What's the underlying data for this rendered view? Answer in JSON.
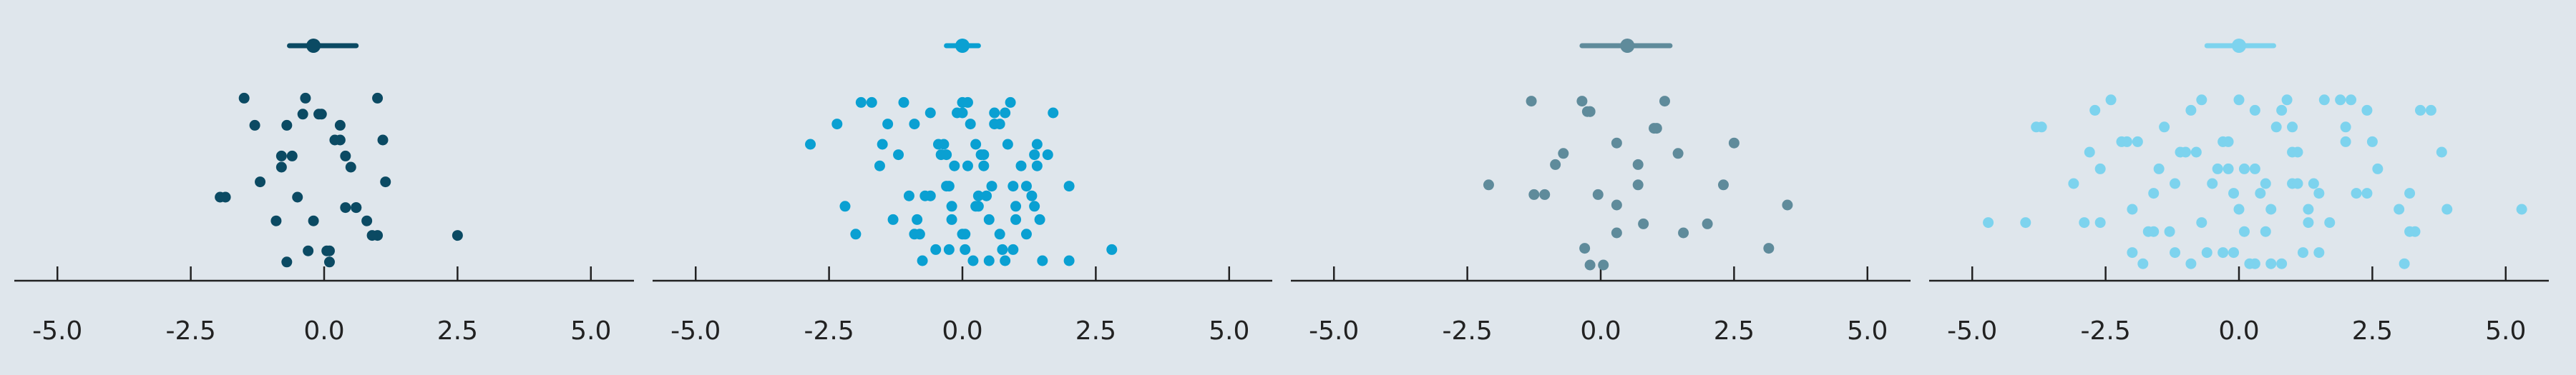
{
  "chart_data": [
    {
      "type": "scatter",
      "style": "jittered strip plot with mean and interval summary above",
      "color": "#0b4a63",
      "x_ticks": [
        "-5.0",
        "-2.5",
        "0.0",
        "2.5",
        "5.0"
      ],
      "xlim": [
        -5.5,
        5.5
      ],
      "summary": {
        "center": -0.2,
        "low": -0.65,
        "high": 0.6
      },
      "values": [
        -1.5,
        -0.5,
        -0.4,
        0.4,
        0.3,
        0.8,
        1.1,
        2.5,
        -0.8,
        0.05,
        0.5,
        -0.7,
        1.15,
        -0.35,
        -1.95,
        -0.05,
        0.6,
        -1.3,
        -0.9,
        0.3,
        1.0,
        -0.6,
        -0.3,
        -0.8,
        0.1,
        -1.2,
        1.0,
        -1.85,
        -0.1,
        0.6,
        -0.7,
        -0.2,
        0.2,
        0.9,
        0.4,
        0.1
      ]
    },
    {
      "type": "scatter",
      "style": "jittered strip plot with mean and interval summary above",
      "color": "#0aa0d2",
      "x_ticks": [
        "-5.0",
        "-2.5",
        "0.0",
        "2.5",
        "5.0"
      ],
      "xlim": [
        -5.5,
        5.5
      ],
      "summary": {
        "center": 0.0,
        "low": -0.3,
        "high": 0.3
      },
      "values": [
        -2.85,
        -0.9,
        -0.4,
        -0.25,
        0.1,
        0.5,
        0.95,
        -1.1,
        -0.6,
        0.0,
        0.3,
        0.7,
        1.45,
        -1.5,
        -0.8,
        -0.3,
        0.05,
        0.4,
        0.8,
        1.2,
        -1.7,
        -0.7,
        -0.1,
        0.25,
        0.6,
        1.0,
        1.4,
        -2.0,
        -1.2,
        -0.5,
        -0.15,
        0.2,
        0.55,
        0.9,
        1.3,
        1.7,
        -2.2,
        -1.4,
        -0.85,
        -0.35,
        0.0,
        0.35,
        0.75,
        1.1,
        1.5,
        2.0,
        -1.9,
        -1.0,
        -0.6,
        -0.2,
        0.15,
        0.5,
        0.85,
        1.2,
        1.6,
        2.8,
        -1.55,
        -0.75,
        -0.25,
        0.1,
        0.45,
        0.8,
        1.35,
        -2.35,
        -1.3,
        -0.45,
        0.05,
        0.4,
        0.95,
        1.4,
        2.0,
        -0.3,
        0.0,
        0.3,
        0.6,
        1.0,
        -0.9,
        -0.2,
        0.25,
        0.7,
        1.35
      ]
    },
    {
      "type": "scatter",
      "style": "jittered strip plot with mean and interval summary above",
      "color": "#5f8b9b",
      "x_ticks": [
        "-5.0",
        "-2.5",
        "0.0",
        "2.5",
        "5.0"
      ],
      "xlim": [
        -5.5,
        5.5
      ],
      "summary": {
        "center": 0.5,
        "low": -0.35,
        "high": 1.3
      },
      "values": [
        -2.1,
        -1.3,
        -1.05,
        -0.25,
        3.5,
        1.05,
        0.8,
        0.3,
        0.3,
        -0.7,
        -0.3,
        -0.85,
        0.05,
        0.7,
        -0.35,
        -0.05,
        -0.2,
        0.3,
        1.0,
        2.0,
        2.5,
        1.55,
        1.45,
        3.15,
        0.7,
        -0.2,
        2.3,
        1.2,
        -1.25,
        -0.2
      ]
    },
    {
      "type": "scatter",
      "style": "jittered strip plot with mean and interval summary above",
      "color": "#7dd3ee",
      "x_ticks": [
        "-5.0",
        "-2.5",
        "0.0",
        "2.5",
        "5.0"
      ],
      "xlim": [
        -5.5,
        5.5
      ],
      "summary": {
        "center": 0.0,
        "low": -0.6,
        "high": 0.65
      },
      "values": [
        -4.7,
        -0.3,
        0.1,
        1.1,
        1.2,
        -2.6,
        -1.8,
        -1.2,
        -0.7,
        -0.1,
        0.3,
        0.6,
        1.0,
        1.7,
        2.5,
        3.2,
        3.8,
        -2.0,
        -1.5,
        -0.9,
        -0.5,
        0.0,
        0.4,
        0.8,
        1.3,
        2.0,
        -4.0,
        -2.2,
        -1.7,
        -1.1,
        -0.6,
        -0.2,
        0.2,
        0.5,
        0.9,
        1.5,
        2.4,
        3.0,
        -3.7,
        -2.9,
        -2.1,
        -1.6,
        -1.0,
        -0.3,
        0.1,
        0.6,
        1.0,
        1.6,
        2.2,
        3.4,
        3.9,
        -3.8,
        -2.6,
        -1.9,
        -1.3,
        -0.8,
        -0.1,
        0.3,
        0.8,
        1.4,
        2.1,
        3.2,
        -2.7,
        -2.0,
        -1.4,
        -0.7,
        -0.2,
        0.5,
        1.0,
        1.5,
        2.6,
        3.1,
        -3.1,
        -2.4,
        -1.6,
        -0.9,
        0.0,
        0.7,
        1.3,
        2.0,
        3.3,
        -2.8,
        -1.2,
        -0.4,
        0.3,
        1.1,
        1.9,
        2.4,
        3.6,
        5.3
      ]
    }
  ]
}
